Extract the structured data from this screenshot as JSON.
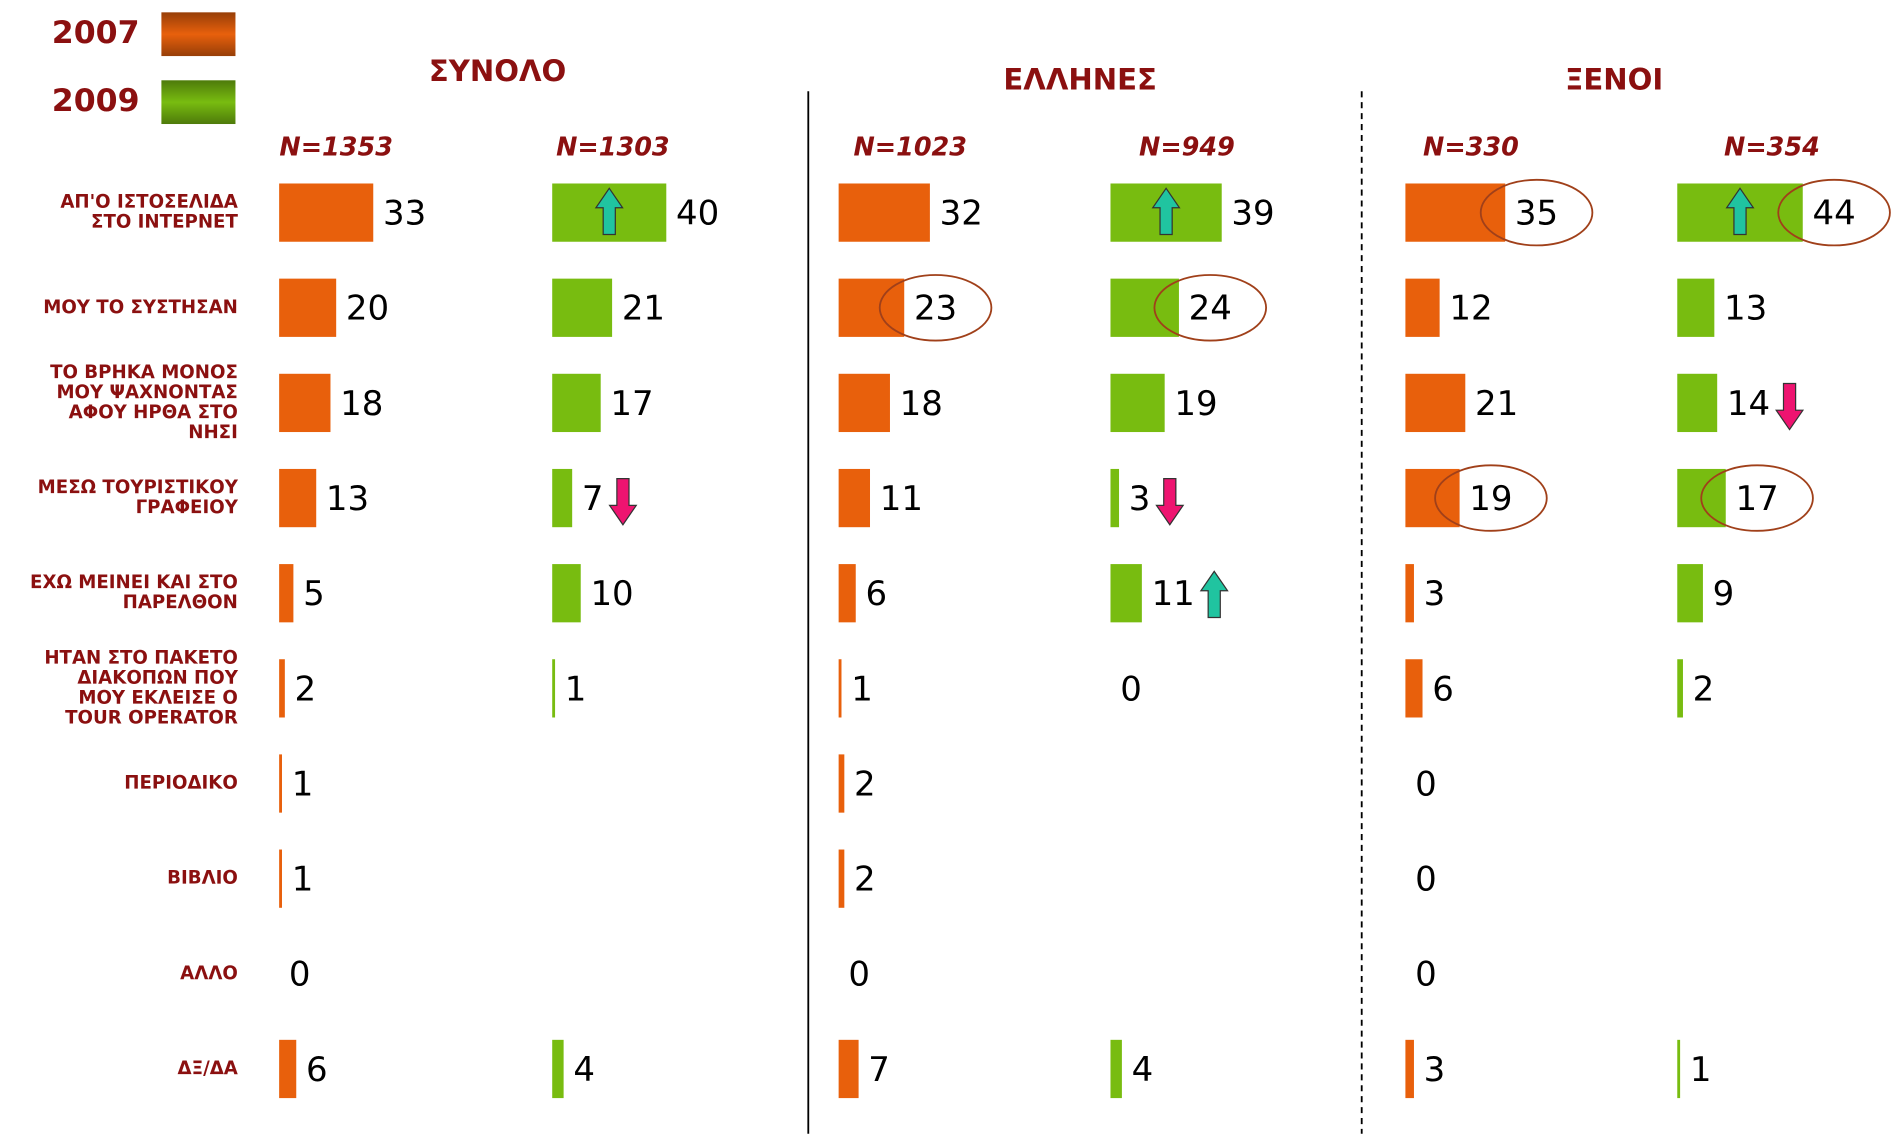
{
  "chart_data": {
    "type": "bar",
    "orientation": "horizontal",
    "legend": [
      {
        "name": "2007",
        "color": "#e8600c"
      },
      {
        "name": "2009",
        "color": "#78bc10"
      }
    ],
    "categories": [
      [
        "ΑΠ'Ο ΙΣΤΟΣΕΛΙΔΑ",
        "ΣΤΟ ΙΝΤΕΡΝΕΤ"
      ],
      [
        "ΜΟΥ ΤΟ ΣΥΣΤΗΣΑΝ"
      ],
      [
        "ΤΟ ΒΡΗΚΑ ΜΟΝΟΣ",
        "ΜΟΥ ΨΑΧΝΟΝΤΑΣ",
        "ΑΦΟΥ ΗΡΘΑ ΣΤΟ",
        "ΝΗΣΙ"
      ],
      [
        "ΜΕΣΩ ΤΟΥΡΙΣΤΙΚΟΥ",
        "ΓΡΑΦΕΙΟΥ"
      ],
      [
        "ΕΧΩ ΜΕΙΝΕΙ ΚΑΙ ΣΤΟ",
        "ΠΑΡΕΛΘΟΝ"
      ],
      [
        "ΗΤΑΝ ΣΤΟ ΠΑΚΕΤΟ",
        "ΔΙΑΚΟΠΩΝ ΠΟΥ",
        "ΜΟΥ ΕΚΛΕΙΣΕ Ο",
        "TOUR OPERATOR"
      ],
      [
        "ΠΕΡΙΟΔΙΚΟ"
      ],
      [
        "ΒΙΒΛΙΟ"
      ],
      [
        "ΑΛΛΟ"
      ],
      [
        "ΔΞ/ΔΑ"
      ]
    ],
    "groups": [
      {
        "title": "ΣΥΝΟΛΟ",
        "series": [
          {
            "name": "N=1353",
            "values": [
              33,
              20,
              18,
              13,
              5,
              2,
              1,
              1,
              0,
              6
            ],
            "arrows": [
              null,
              null,
              null,
              null,
              null,
              null,
              null,
              null,
              null,
              null
            ],
            "circled": [
              false,
              false,
              false,
              false,
              false,
              false,
              false,
              false,
              false,
              false
            ]
          },
          {
            "name": "N=1303",
            "values": [
              40,
              21,
              17,
              7,
              10,
              1,
              null,
              null,
              null,
              4
            ],
            "arrows": [
              "up",
              null,
              null,
              "down",
              null,
              null,
              null,
              null,
              null,
              null
            ],
            "circled": [
              false,
              false,
              false,
              false,
              false,
              false,
              false,
              false,
              false,
              false
            ]
          }
        ]
      },
      {
        "title": "ΕΛΛΗΝΕΣ",
        "series": [
          {
            "name": "N=1023",
            "values": [
              32,
              23,
              18,
              11,
              6,
              1,
              2,
              2,
              0,
              7
            ],
            "arrows": [
              null,
              null,
              null,
              null,
              null,
              null,
              null,
              null,
              null,
              null
            ],
            "circled": [
              false,
              true,
              false,
              false,
              false,
              false,
              false,
              false,
              false,
              false
            ]
          },
          {
            "name": "N=949",
            "values": [
              39,
              24,
              19,
              3,
              11,
              0,
              null,
              null,
              null,
              4
            ],
            "arrows": [
              "up",
              null,
              null,
              "down",
              "up",
              null,
              null,
              null,
              null,
              null
            ],
            "circled": [
              false,
              true,
              false,
              false,
              false,
              false,
              false,
              false,
              false,
              false
            ]
          }
        ]
      },
      {
        "title": "ΞΕΝΟΙ",
        "series": [
          {
            "name": "N=330",
            "values": [
              35,
              12,
              21,
              19,
              3,
              6,
              0,
              0,
              0,
              3
            ],
            "arrows": [
              null,
              null,
              null,
              null,
              null,
              null,
              null,
              null,
              null,
              null
            ],
            "circled": [
              true,
              false,
              false,
              true,
              false,
              false,
              false,
              false,
              false,
              false
            ]
          },
          {
            "name": "N=354",
            "values": [
              44,
              13,
              14,
              17,
              9,
              2,
              null,
              null,
              null,
              1
            ],
            "arrows": [
              "up",
              null,
              "down",
              null,
              null,
              null,
              null,
              null,
              null,
              null
            ],
            "circled": [
              true,
              false,
              false,
              true,
              false,
              false,
              false,
              false,
              false,
              false
            ]
          }
        ]
      }
    ]
  }
}
